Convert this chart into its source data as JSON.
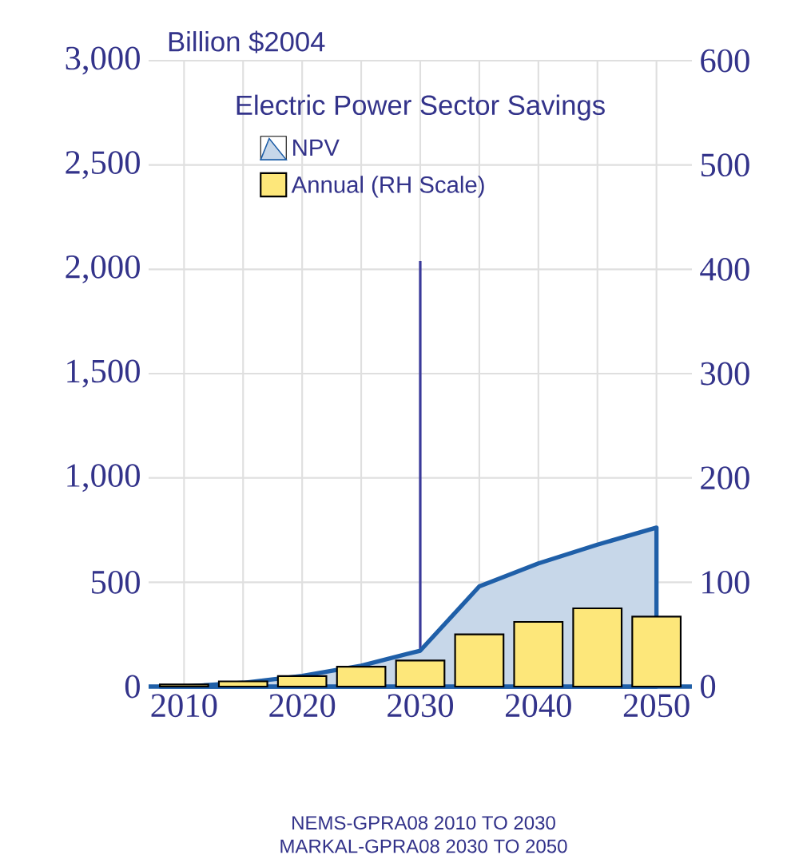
{
  "chart_data": {
    "type": "bar",
    "title": "Electric Power Sector Savings",
    "ylabel": "Billion $2004",
    "annotations": [
      "NEMS-GPRA08 2010 TO 2030",
      "MARKAL-GPRA08 2030 TO 2050"
    ],
    "xlim": [
      2007,
      2053
    ],
    "xticks": [
      2010,
      {
        "value": 2015,
        "label": null
      },
      2020,
      {
        "value": 2025,
        "label": null
      },
      2030,
      {
        "value": 2035,
        "label": null
      },
      2040,
      {
        "value": 2045,
        "label": null
      },
      2050
    ],
    "ylim": [
      0,
      3000
    ],
    "yticks": [
      0,
      500,
      {
        "value": 1000,
        "label": "1,000"
      },
      {
        "value": 1500,
        "label": "1,500"
      },
      {
        "value": 2000,
        "label": "2,000"
      },
      {
        "value": 2500,
        "label": "2,500"
      },
      {
        "value": 3000,
        "label": "3,000"
      }
    ],
    "y2lim": [
      0,
      600
    ],
    "y2ticks": [
      0,
      100,
      200,
      300,
      400,
      500,
      600
    ],
    "grid": true,
    "legend": "top",
    "ref_lines": [
      {
        "axis": "x",
        "value": 2030,
        "color": "#3a3a9a"
      }
    ],
    "series": [
      {
        "name": "NPV",
        "type": "area",
        "axis": "y",
        "color": "#1f5fa8",
        "x": [
          2008,
          2010,
          2015,
          2020,
          2025,
          2030,
          2035,
          2040,
          2045,
          2050
        ],
        "values": [
          0,
          0,
          18,
          51,
          100,
          172,
          480,
          590,
          680,
          762
        ]
      },
      {
        "name": "Annual (RH Scale)",
        "axis": "y2",
        "color": "#fde77a",
        "x": [
          2010,
          2015,
          2020,
          2025,
          2030,
          2035,
          2040,
          2045,
          2050
        ],
        "values": [
          2,
          5,
          10,
          19,
          25,
          50,
          62,
          75,
          67
        ]
      }
    ]
  }
}
